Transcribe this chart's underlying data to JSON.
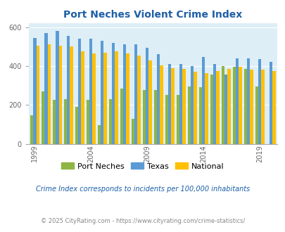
{
  "title": "Port Neches Violent Crime Index",
  "years": [
    1999,
    2000,
    2001,
    2002,
    2003,
    2004,
    2005,
    2006,
    2007,
    2008,
    2009,
    2010,
    2011,
    2012,
    2013,
    2014,
    2015,
    2016,
    2017,
    2018,
    2019,
    2020
  ],
  "port_neches": [
    145,
    270,
    225,
    230,
    190,
    225,
    95,
    230,
    285,
    130,
    275,
    275,
    250,
    250,
    295,
    290,
    355,
    400,
    395,
    385,
    295,
    0
  ],
  "texas": [
    545,
    570,
    580,
    555,
    540,
    540,
    530,
    520,
    510,
    510,
    495,
    460,
    410,
    410,
    400,
    445,
    410,
    355,
    440,
    440,
    435,
    420
  ],
  "national": [
    505,
    510,
    505,
    500,
    475,
    465,
    470,
    475,
    465,
    455,
    430,
    405,
    390,
    385,
    370,
    365,
    375,
    385,
    395,
    380,
    380,
    375
  ],
  "port_neches_color": "#8db645",
  "texas_color": "#5b9bd5",
  "national_color": "#ffc000",
  "bg_color": "#ddeef6",
  "ylim": [
    0,
    620
  ],
  "yticks": [
    0,
    200,
    400,
    600
  ],
  "xlabel_ticks": [
    1999,
    2004,
    2009,
    2014,
    2019
  ],
  "legend_labels": [
    "Port Neches",
    "Texas",
    "National"
  ],
  "footnote1": "Crime Index corresponds to incidents per 100,000 inhabitants",
  "footnote2": "© 2025 CityRating.com - https://www.cityrating.com/crime-statistics/",
  "title_color": "#1f5fa6",
  "footnote1_color": "#1a5fa8",
  "footnote2_color": "#888888"
}
